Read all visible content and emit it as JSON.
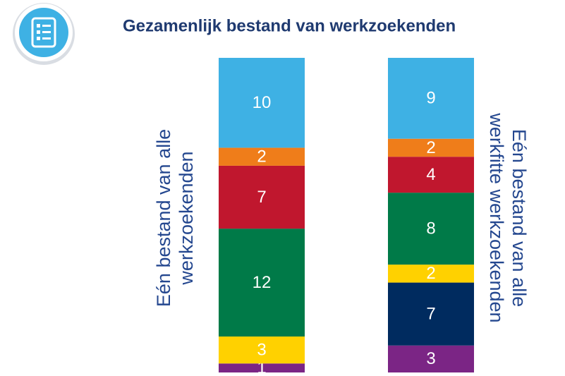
{
  "chart_data": {
    "type": "stacked_bar",
    "title": "Gezamenlijk bestand van werkzoekenden",
    "categories": [
      [
        "Eén bestand van alle",
        "werkzoekenden"
      ],
      [
        "Eén bestand van alle",
        "werkfitte werkzoekenden"
      ]
    ],
    "series": [
      {
        "color": "#7b2585",
        "values": [
          1,
          3
        ]
      },
      {
        "color": "#002b5f",
        "values": [
          null,
          7
        ]
      },
      {
        "color": "#ffd100",
        "values": [
          3,
          2
        ]
      },
      {
        "color": "#007a48",
        "values": [
          12,
          8
        ]
      },
      {
        "color": "#c0172e",
        "values": [
          7,
          4
        ]
      },
      {
        "color": "#ef7d1a",
        "values": [
          2,
          2
        ]
      },
      {
        "color": "#3eb1e4",
        "values": [
          10,
          9
        ]
      }
    ]
  }
}
